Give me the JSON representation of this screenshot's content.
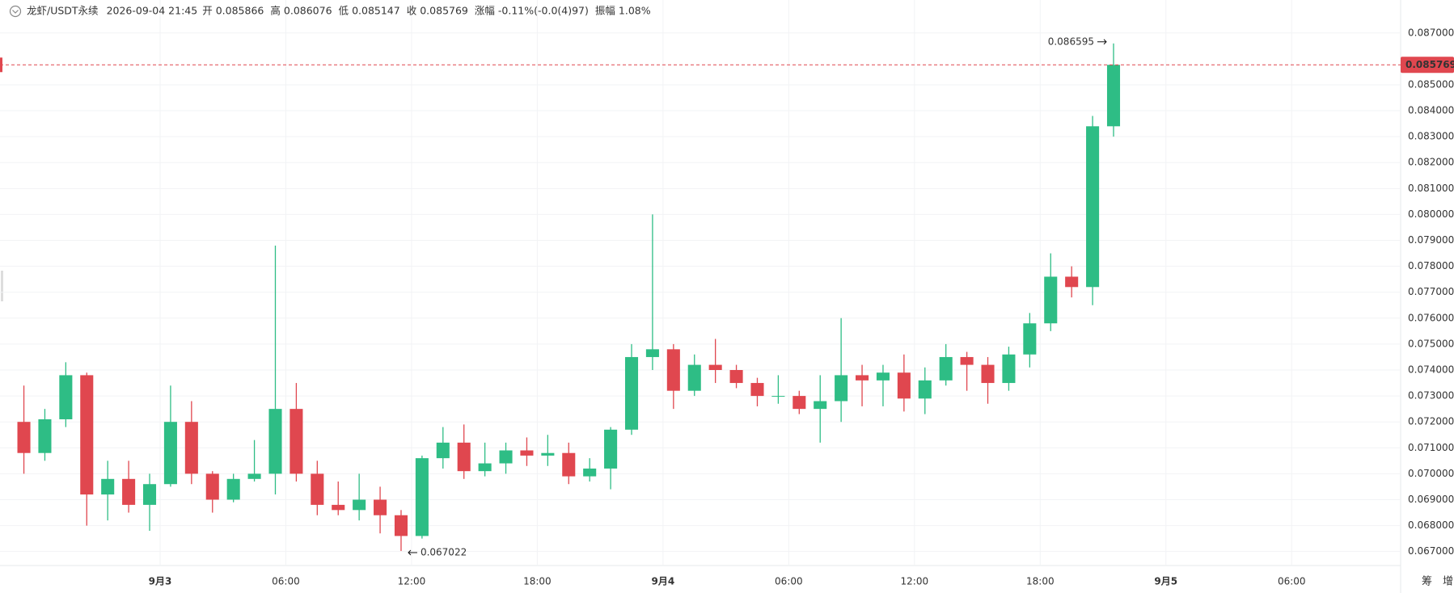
{
  "chart_data": {
    "type": "candlestick",
    "header": {
      "symbol": "龙虾/USDT永续",
      "time": "2026-09-04 21:45",
      "items": [
        {
          "label": "开",
          "value": "0.085866"
        },
        {
          "label": "高",
          "value": "0.086076"
        },
        {
          "label": "低",
          "value": "0.085147"
        },
        {
          "label": "收",
          "value": "0.085769"
        },
        {
          "label": "涨幅",
          "value": "-0.11%(-0.0(4)97)"
        },
        {
          "label": "振幅",
          "value": "1.08%"
        }
      ]
    },
    "up_color": "#2ebd85",
    "down_color": "#e0474f",
    "open": [
      0.072,
      0.0708,
      0.0721,
      0.0738,
      0.0692,
      0.0698,
      0.0688,
      0.0696,
      0.072,
      0.07,
      0.069,
      0.0698,
      0.07,
      0.0725,
      0.07,
      0.0688,
      0.0686,
      0.069,
      0.0684,
      0.0676,
      0.0706,
      0.0712,
      0.0701,
      0.0704,
      0.0709,
      0.0707,
      0.0708,
      0.0699,
      0.0702,
      0.0717,
      0.0745,
      0.0748,
      0.0732,
      0.0742,
      0.074,
      0.0735,
      0.073,
      0.073,
      0.0725,
      0.0728,
      0.0738,
      0.0736,
      0.0739,
      0.0729,
      0.0736,
      0.0745,
      0.0742,
      0.0735,
      0.0746,
      0.0758,
      0.0776,
      0.0772,
      0.0834
    ],
    "high": [
      0.0734,
      0.0725,
      0.0743,
      0.0739,
      0.0705,
      0.0705,
      0.07,
      0.0734,
      0.0728,
      0.0701,
      0.07,
      0.0713,
      0.0788,
      0.0735,
      0.0705,
      0.0697,
      0.07,
      0.0695,
      0.0686,
      0.0707,
      0.0718,
      0.0719,
      0.0712,
      0.0712,
      0.0714,
      0.0715,
      0.0712,
      0.0706,
      0.0718,
      0.075,
      0.08,
      0.075,
      0.0746,
      0.0752,
      0.0742,
      0.0737,
      0.0738,
      0.0732,
      0.0738,
      0.076,
      0.0742,
      0.0742,
      0.0746,
      0.0741,
      0.075,
      0.0747,
      0.0745,
      0.0749,
      0.0762,
      0.0785,
      0.078,
      0.0838,
      0.086595
    ],
    "low": [
      0.07,
      0.0705,
      0.0718,
      0.068,
      0.0682,
      0.0685,
      0.0678,
      0.0695,
      0.0696,
      0.0685,
      0.0689,
      0.0697,
      0.0692,
      0.0697,
      0.0684,
      0.0684,
      0.0682,
      0.0677,
      0.067022,
      0.0675,
      0.0702,
      0.0698,
      0.0699,
      0.07,
      0.0703,
      0.0703,
      0.0696,
      0.0697,
      0.0694,
      0.0715,
      0.074,
      0.0725,
      0.073,
      0.0735,
      0.0733,
      0.0726,
      0.0727,
      0.0723,
      0.0712,
      0.072,
      0.0726,
      0.0726,
      0.0724,
      0.0723,
      0.0734,
      0.0732,
      0.0727,
      0.0732,
      0.0741,
      0.0755,
      0.0768,
      0.0765,
      0.083
    ],
    "close": [
      0.0708,
      0.0721,
      0.0738,
      0.0692,
      0.0698,
      0.0688,
      0.0696,
      0.072,
      0.07,
      0.069,
      0.0698,
      0.07,
      0.0725,
      0.07,
      0.0688,
      0.0686,
      0.069,
      0.0684,
      0.0676,
      0.0706,
      0.0712,
      0.0701,
      0.0704,
      0.0709,
      0.0707,
      0.0708,
      0.0699,
      0.0702,
      0.0717,
      0.0745,
      0.0748,
      0.0732,
      0.0742,
      0.074,
      0.0735,
      0.073,
      0.073,
      0.0725,
      0.0728,
      0.0738,
      0.0736,
      0.0739,
      0.0729,
      0.0736,
      0.0745,
      0.0742,
      0.0735,
      0.0746,
      0.0758,
      0.0776,
      0.0772,
      0.0834,
      0.085769
    ],
    "xlim": [
      -1.14,
      65.7
    ],
    "xticks": [
      {
        "value": 6.5,
        "label": "9月3"
      },
      {
        "value": 12.5,
        "label": "06:00"
      },
      {
        "value": 18.5,
        "label": "12:00"
      },
      {
        "value": 24.5,
        "label": "18:00"
      },
      {
        "value": 30.5,
        "label": "9月4"
      },
      {
        "value": 36.5,
        "label": "06:00"
      },
      {
        "value": 42.5,
        "label": "12:00"
      },
      {
        "value": 48.5,
        "label": "18:00"
      },
      {
        "value": 54.5,
        "label": "9月5"
      },
      {
        "value": 60.5,
        "label": "06:00"
      }
    ],
    "ylim": [
      0.06646,
      0.08827
    ],
    "yticks": [
      {
        "value": 0.067,
        "label": "0.067000"
      },
      {
        "value": 0.068,
        "label": "0.068000"
      },
      {
        "value": 0.069,
        "label": "0.069000"
      },
      {
        "value": 0.07,
        "label": "0.070000"
      },
      {
        "value": 0.071,
        "label": "0.071000"
      },
      {
        "value": 0.072,
        "label": "0.072000"
      },
      {
        "value": 0.073,
        "label": "0.073000"
      },
      {
        "value": 0.074,
        "label": "0.074000"
      },
      {
        "value": 0.075,
        "label": "0.075000"
      },
      {
        "value": 0.076,
        "label": "0.076000"
      },
      {
        "value": 0.077,
        "label": "0.077000"
      },
      {
        "value": 0.078,
        "label": "0.078000"
      },
      {
        "value": 0.079,
        "label": "0.079000"
      },
      {
        "value": 0.08,
        "label": "0.080000"
      },
      {
        "value": 0.081,
        "label": "0.081000"
      },
      {
        "value": 0.082,
        "label": "0.082000"
      },
      {
        "value": 0.083,
        "label": "0.083000"
      },
      {
        "value": 0.084,
        "label": "0.084000"
      },
      {
        "value": 0.085,
        "label": "0.085000"
      },
      {
        "value": 0.087,
        "label": "0.087000"
      }
    ],
    "grid": true,
    "last_price": {
      "value": 0.085769,
      "label": "0.085769"
    },
    "high_marker": {
      "value": 0.086595,
      "label": "0.086595"
    },
    "low_marker": {
      "value": 0.067022,
      "label": "0.067022"
    },
    "corner_buttons": [
      "筹",
      "增"
    ]
  }
}
